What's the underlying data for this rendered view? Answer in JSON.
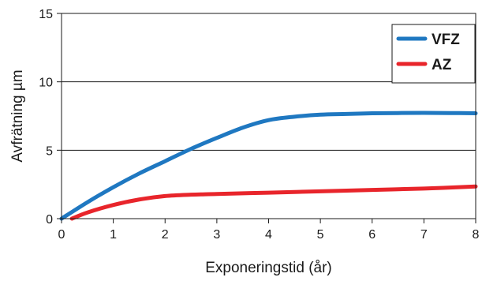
{
  "chart_data": {
    "type": "line",
    "xlabel": "Exponeringstid (år)",
    "ylabel": "Avfrätning µm",
    "xlim": [
      0,
      8
    ],
    "ylim": [
      0,
      15
    ],
    "x_ticks": [
      "0",
      "1",
      "2",
      "3",
      "4",
      "5",
      "6",
      "7",
      "8"
    ],
    "y_ticks": [
      "0",
      "5",
      "10",
      "15"
    ],
    "grid": "horizontal",
    "legend_position": "top-right",
    "series": [
      {
        "name": "VFZ",
        "color": "#1f78c1",
        "x": [
          0,
          0.5,
          1,
          1.5,
          2,
          2.5,
          3,
          3.5,
          4,
          4.5,
          5,
          5.5,
          6,
          6.5,
          7,
          7.5,
          8
        ],
        "y": [
          0,
          1.2,
          2.3,
          3.3,
          4.2,
          5.1,
          5.9,
          6.65,
          7.2,
          7.45,
          7.6,
          7.65,
          7.7,
          7.72,
          7.73,
          7.72,
          7.7
        ]
      },
      {
        "name": "AZ",
        "color": "#e8252b",
        "x": [
          0.2,
          0.5,
          1,
          1.5,
          2,
          2.5,
          3,
          4,
          5,
          6,
          7,
          8
        ],
        "y": [
          0,
          0.45,
          1.0,
          1.4,
          1.65,
          1.75,
          1.8,
          1.9,
          2.0,
          2.1,
          2.2,
          2.35
        ]
      }
    ]
  }
}
